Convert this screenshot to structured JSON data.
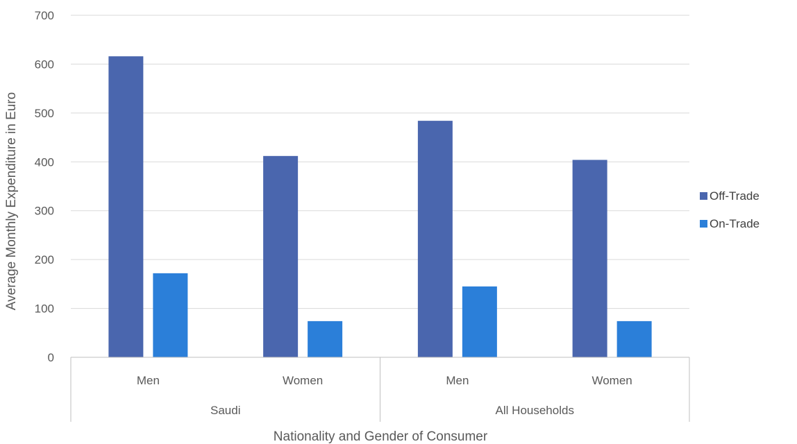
{
  "chart_data": {
    "type": "bar",
    "title": "",
    "xlabel": "Nationality and Gender of Consumer",
    "ylabel": "Average Monthly Expenditure in Euro",
    "ylim": [
      0,
      700
    ],
    "yticks": [
      0,
      100,
      200,
      300,
      400,
      500,
      600,
      700
    ],
    "grid": true,
    "legend_position": "right",
    "categories": [
      "Men",
      "Women",
      "Men",
      "Women"
    ],
    "groups": [
      {
        "label": "Saudi",
        "categories": [
          "Men",
          "Women"
        ]
      },
      {
        "label": "All Households",
        "categories": [
          "Men",
          "Women"
        ]
      }
    ],
    "series": [
      {
        "name": "Off-Trade",
        "color": "#4a66ae",
        "values": [
          616,
          412,
          484,
          404
        ]
      },
      {
        "name": "On-Trade",
        "color": "#2b7fd9",
        "values": [
          172,
          74,
          145,
          74
        ]
      }
    ]
  }
}
